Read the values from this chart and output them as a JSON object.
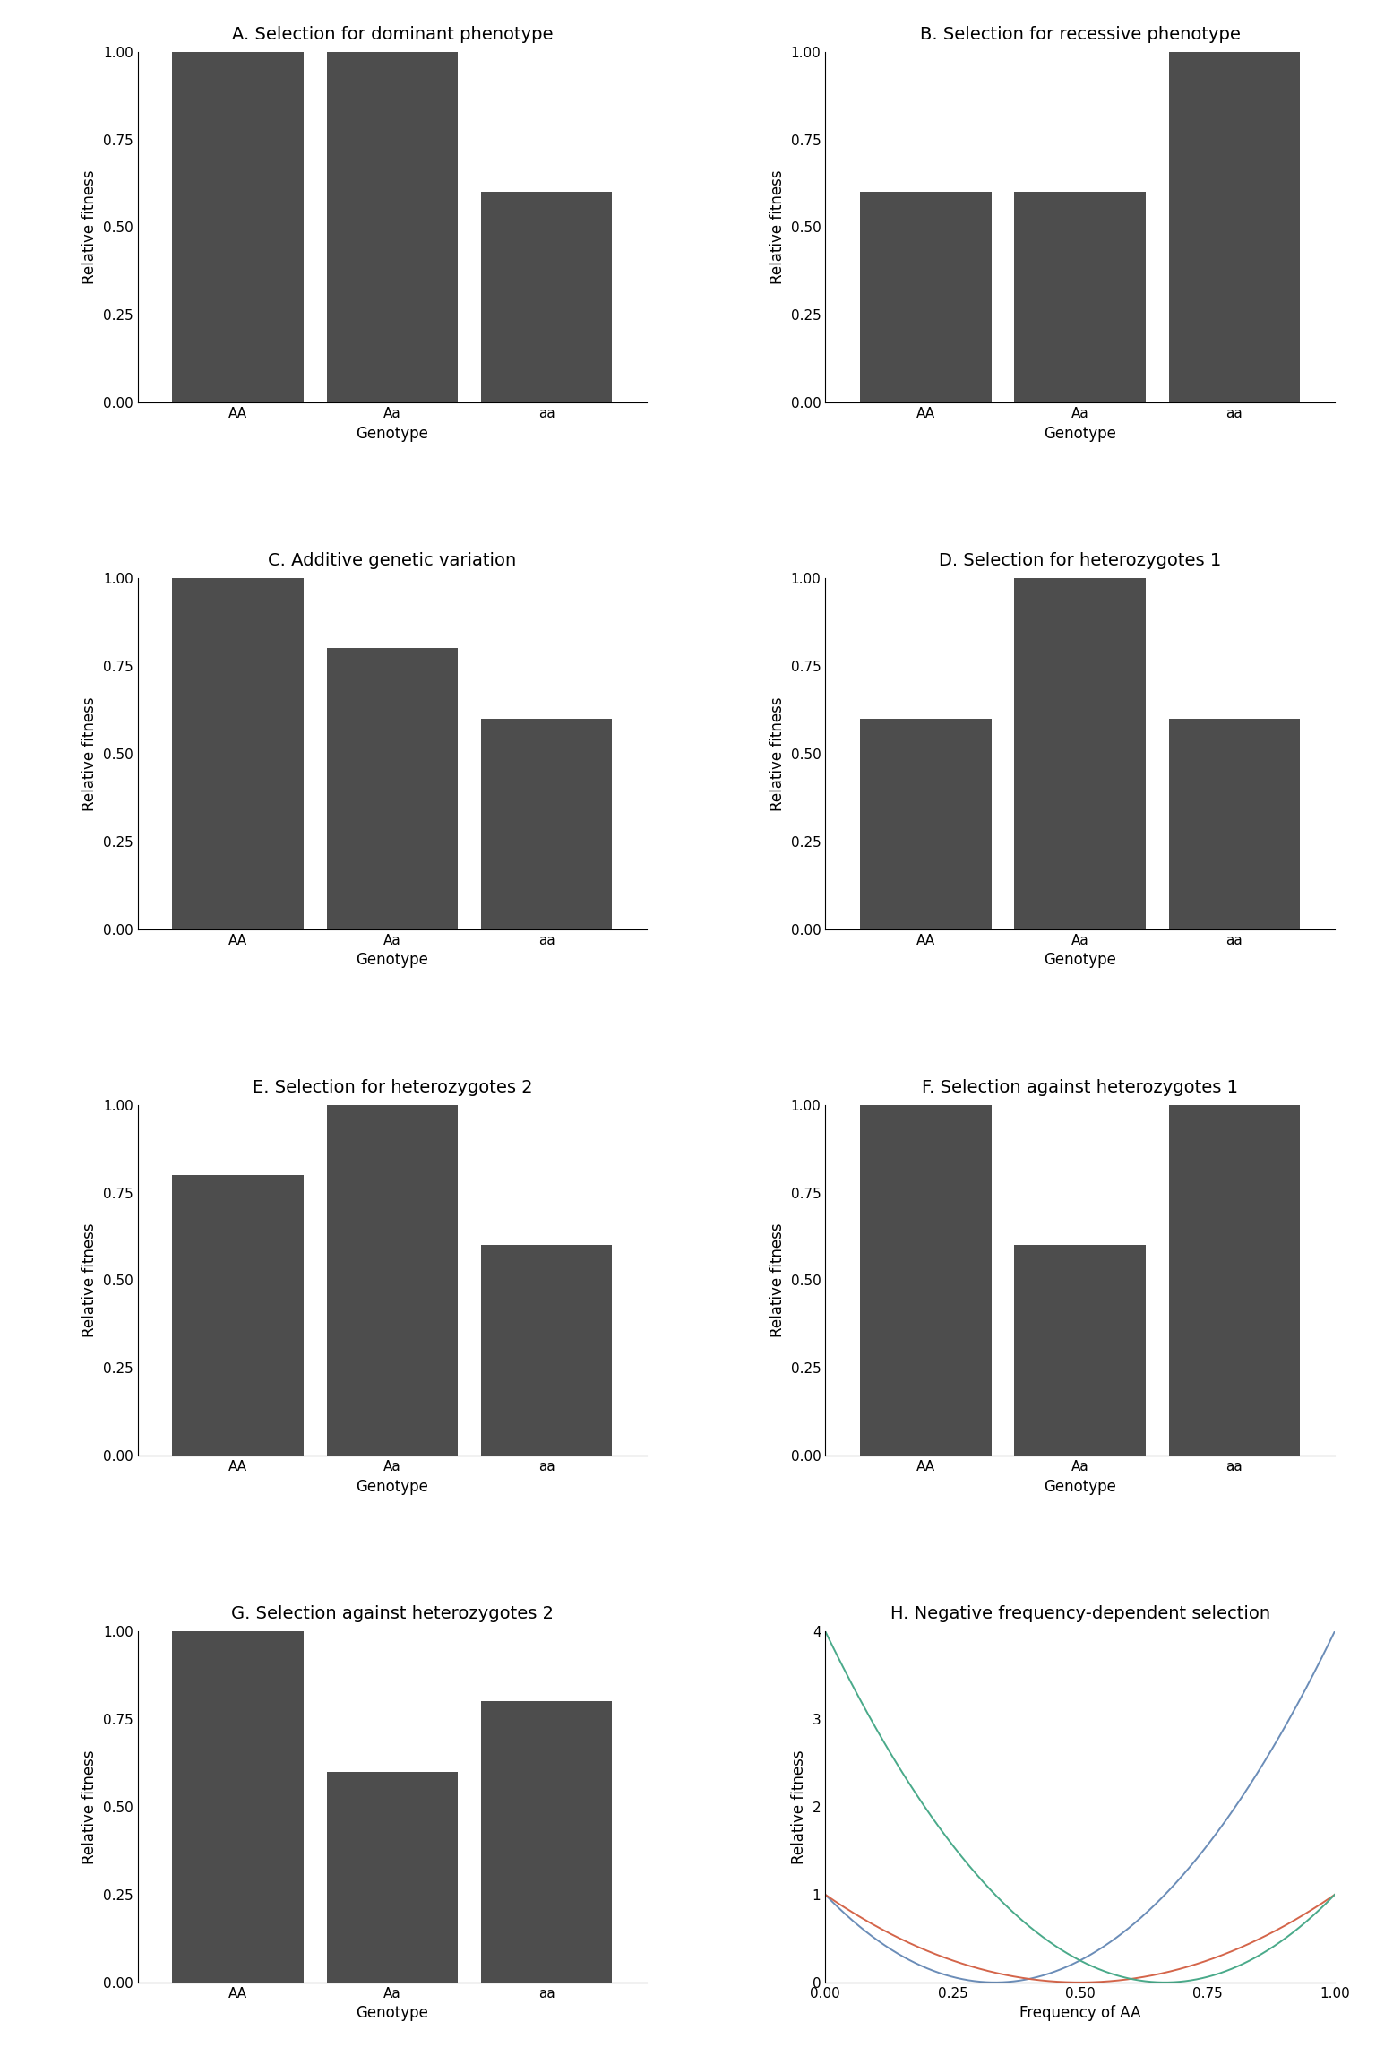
{
  "panels": [
    {
      "title": "A. Selection for dominant phenotype",
      "genotypes": [
        "AA",
        "Aa",
        "aa"
      ],
      "values": [
        1.0,
        1.0,
        0.6
      ],
      "ylabel": "Relative fitness",
      "xlabel": "Genotype"
    },
    {
      "title": "B. Selection for recessive phenotype",
      "genotypes": [
        "AA",
        "Aa",
        "aa"
      ],
      "values": [
        0.6,
        0.6,
        1.0
      ],
      "ylabel": "Relative fitness",
      "xlabel": "Genotype"
    },
    {
      "title": "C. Additive genetic variation",
      "genotypes": [
        "AA",
        "Aa",
        "aa"
      ],
      "values": [
        1.0,
        0.8,
        0.6
      ],
      "ylabel": "Relative fitness",
      "xlabel": "Genotype"
    },
    {
      "title": "D. Selection for heterozygotes 1",
      "genotypes": [
        "AA",
        "Aa",
        "aa"
      ],
      "values": [
        0.6,
        1.0,
        0.6
      ],
      "ylabel": "Relative fitness",
      "xlabel": "Genotype"
    },
    {
      "title": "E. Selection for heterozygotes 2",
      "genotypes": [
        "AA",
        "Aa",
        "aa"
      ],
      "values": [
        0.8,
        1.0,
        0.6
      ],
      "ylabel": "Relative fitness",
      "xlabel": "Genotype"
    },
    {
      "title": "F. Selection against heterozygotes 1",
      "genotypes": [
        "AA",
        "Aa",
        "aa"
      ],
      "values": [
        1.0,
        0.6,
        1.0
      ],
      "ylabel": "Relative fitness",
      "xlabel": "Genotype"
    },
    {
      "title": "G. Selection against heterozygotes 2",
      "genotypes": [
        "AA",
        "Aa",
        "aa"
      ],
      "values": [
        1.0,
        0.6,
        0.8
      ],
      "ylabel": "Relative fitness",
      "xlabel": "Genotype"
    }
  ],
  "panel_h": {
    "title": "H. Negative frequency-dependent selection",
    "ylabel": "Relative fitness",
    "xlabel": "Frequency of AA",
    "xlim": [
      0.0,
      1.0
    ],
    "ylim": [
      0.0,
      4.0
    ],
    "yticks": [
      0,
      1,
      2,
      3,
      4
    ],
    "xticks": [
      0.0,
      0.25,
      0.5,
      0.75,
      1.0
    ],
    "s": 2,
    "color_AA": "#6b8db8",
    "color_Aa": "#d4654a",
    "color_aa": "#4aaa8a",
    "line_width": 1.4
  },
  "bar_color": "#4d4d4d",
  "bar_width": 0.85,
  "ylim_bar": [
    0.0,
    1.0
  ],
  "yticks_bar": [
    0.0,
    0.25,
    0.5,
    0.75,
    1.0
  ],
  "background_color": "#ffffff",
  "title_fontsize": 14,
  "label_fontsize": 12,
  "tick_fontsize": 11
}
